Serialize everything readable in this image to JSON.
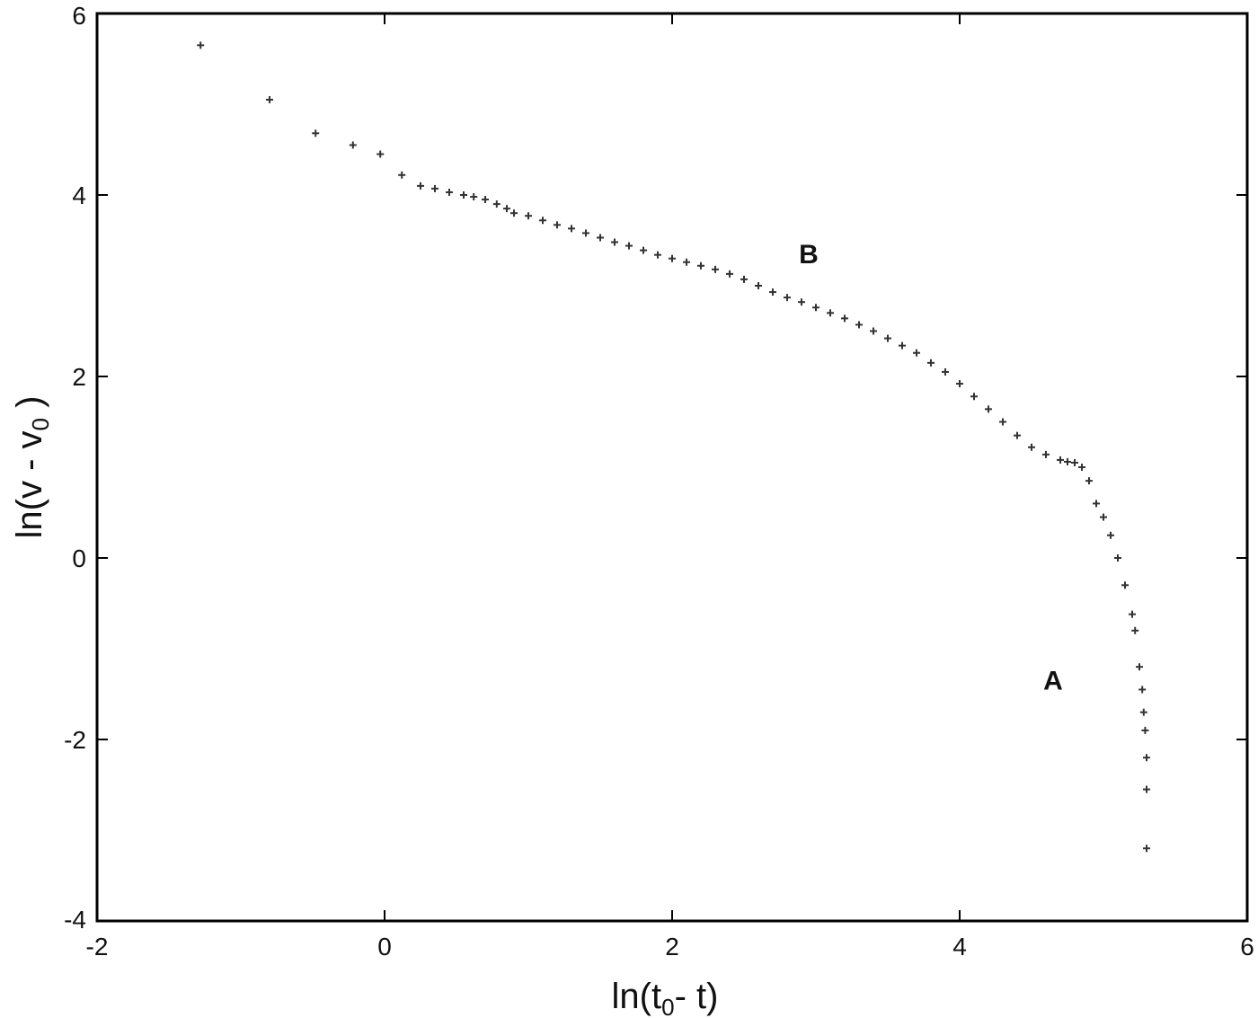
{
  "chart_data": {
    "type": "scatter",
    "title": "",
    "xlabel": {
      "main": "ln(t",
      "sub": "0",
      "tail": "- t)"
    },
    "ylabel": {
      "main": "ln(v - v",
      "sub": "0",
      "tail": " )"
    },
    "xlim": [
      -2,
      6
    ],
    "ylim": [
      -4,
      6
    ],
    "xticks": [
      -2,
      0,
      2,
      4,
      6
    ],
    "yticks": [
      -4,
      -2,
      0,
      2,
      4,
      6
    ],
    "xtick_labels": [
      "-2",
      "0",
      "2",
      "4",
      "6"
    ],
    "ytick_labels": [
      "-4",
      "-2",
      "0",
      "2",
      "4",
      "6"
    ],
    "grid": false,
    "marker_color": "#333333",
    "annotations": [
      {
        "text": "B",
        "x": 2.95,
        "y": 3.25
      },
      {
        "text": "A",
        "x": 4.65,
        "y": -1.45
      }
    ],
    "series": [
      {
        "points": [
          [
            -1.28,
            5.65
          ],
          [
            -0.8,
            5.05
          ],
          [
            -0.48,
            4.68
          ],
          [
            -0.22,
            4.55
          ],
          [
            -0.03,
            4.45
          ],
          [
            0.12,
            4.22
          ],
          [
            0.25,
            4.1
          ],
          [
            0.35,
            4.07
          ],
          [
            0.45,
            4.03
          ],
          [
            0.55,
            4.0
          ],
          [
            0.62,
            3.98
          ],
          [
            0.7,
            3.95
          ],
          [
            0.78,
            3.9
          ],
          [
            0.85,
            3.85
          ],
          [
            0.9,
            3.8
          ],
          [
            1.0,
            3.77
          ],
          [
            1.1,
            3.72
          ],
          [
            1.2,
            3.67
          ],
          [
            1.3,
            3.63
          ],
          [
            1.4,
            3.58
          ],
          [
            1.5,
            3.53
          ],
          [
            1.6,
            3.48
          ],
          [
            1.7,
            3.44
          ],
          [
            1.8,
            3.39
          ],
          [
            1.9,
            3.34
          ],
          [
            2.0,
            3.3
          ],
          [
            2.1,
            3.26
          ],
          [
            2.2,
            3.22
          ],
          [
            2.3,
            3.18
          ],
          [
            2.4,
            3.13
          ],
          [
            2.5,
            3.07
          ],
          [
            2.6,
            3.0
          ],
          [
            2.7,
            2.93
          ],
          [
            2.8,
            2.87
          ],
          [
            2.9,
            2.82
          ],
          [
            3.0,
            2.76
          ],
          [
            3.1,
            2.7
          ],
          [
            3.2,
            2.64
          ],
          [
            3.3,
            2.57
          ],
          [
            3.4,
            2.5
          ],
          [
            3.5,
            2.42
          ],
          [
            3.6,
            2.34
          ],
          [
            3.7,
            2.26
          ],
          [
            3.8,
            2.15
          ],
          [
            3.9,
            2.05
          ],
          [
            4.0,
            1.92
          ],
          [
            4.1,
            1.78
          ],
          [
            4.2,
            1.64
          ],
          [
            4.3,
            1.5
          ],
          [
            4.4,
            1.35
          ],
          [
            4.5,
            1.22
          ],
          [
            4.6,
            1.14
          ],
          [
            4.7,
            1.08
          ],
          [
            4.75,
            1.06
          ],
          [
            4.8,
            1.05
          ],
          [
            4.85,
            1.0
          ],
          [
            4.9,
            0.85
          ],
          [
            4.95,
            0.6
          ],
          [
            5.0,
            0.45
          ],
          [
            5.05,
            0.25
          ],
          [
            5.1,
            0.0
          ],
          [
            5.15,
            -0.3
          ],
          [
            5.2,
            -0.62
          ],
          [
            5.22,
            -0.8
          ],
          [
            5.25,
            -1.2
          ],
          [
            5.27,
            -1.45
          ],
          [
            5.28,
            -1.7
          ],
          [
            5.29,
            -1.9
          ],
          [
            5.3,
            -2.2
          ],
          [
            5.3,
            -2.55
          ],
          [
            5.3,
            -3.2
          ]
        ]
      }
    ]
  }
}
